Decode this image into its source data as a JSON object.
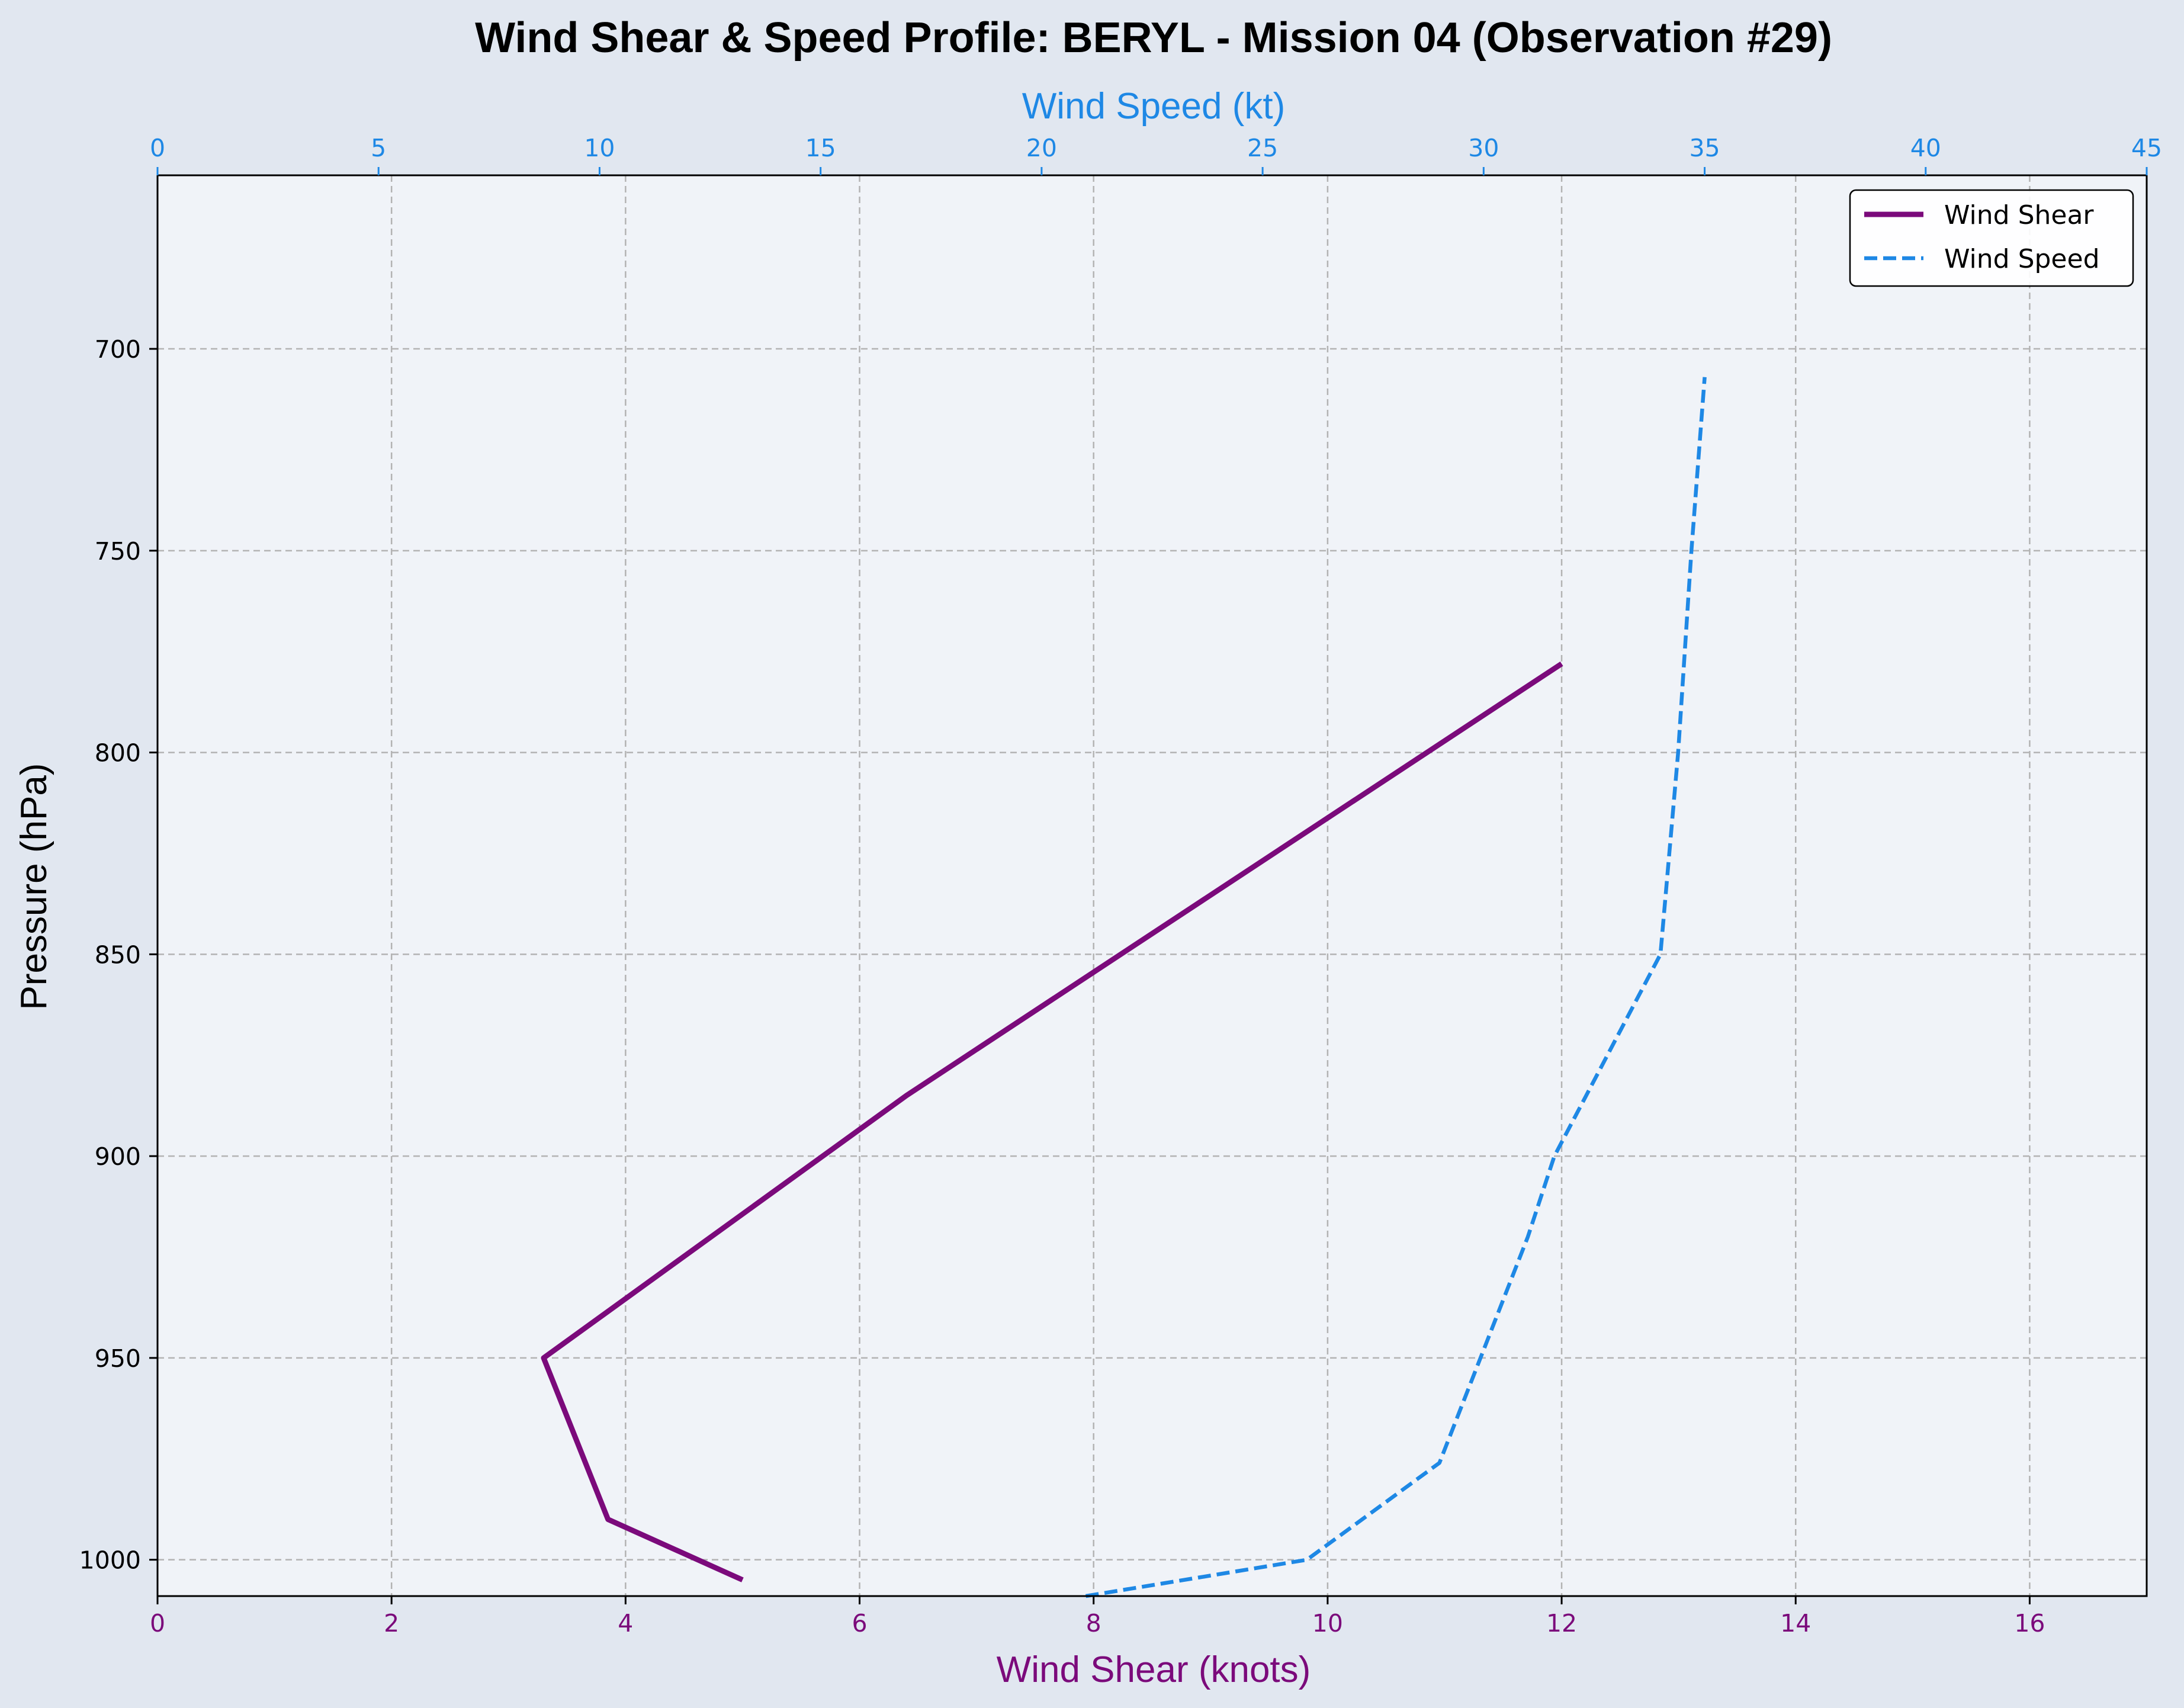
{
  "chart_data": {
    "type": "line",
    "title": "Wind Shear & Speed Profile: BERYL - Mission 04 (Observation #29)",
    "ylabel": "Pressure (hPa)",
    "xlabel_bottom": "Wind Shear (knots)",
    "xlabel_top": "Wind Speed (kt)",
    "ylim": [
      1009,
      657
    ],
    "y_ticks": [
      700,
      750,
      800,
      850,
      900,
      950,
      1000
    ],
    "x_bottom_lim": [
      0,
      17
    ],
    "x_bottom_ticks": [
      0,
      2,
      4,
      6,
      8,
      10,
      12,
      14,
      16
    ],
    "x_top_lim": [
      0,
      45
    ],
    "x_top_ticks": [
      0,
      5,
      10,
      15,
      20,
      25,
      30,
      35,
      40,
      45
    ],
    "grid": true,
    "legend_position": "top-right",
    "colors": {
      "shear": "#7b0a7b",
      "speed": "#1e88e5",
      "plot_bg": "#f0f3f8",
      "figure_bg": "#e1e7f0"
    },
    "series": [
      {
        "name": "Wind Shear",
        "axis": "bottom",
        "style": "solid",
        "points": [
          {
            "pressure": 1005,
            "value": 5.0
          },
          {
            "pressure": 990,
            "value": 3.85
          },
          {
            "pressure": 950,
            "value": 3.3
          },
          {
            "pressure": 885,
            "value": 6.4
          },
          {
            "pressure": 778,
            "value": 12.0
          }
        ]
      },
      {
        "name": "Wind Speed",
        "axis": "top",
        "style": "dashed",
        "points": [
          {
            "pressure": 1009,
            "value": 21.0
          },
          {
            "pressure": 1000,
            "value": 26.0
          },
          {
            "pressure": 976,
            "value": 29.0
          },
          {
            "pressure": 920,
            "value": 31.0
          },
          {
            "pressure": 900,
            "value": 31.6
          },
          {
            "pressure": 850,
            "value": 34.0
          },
          {
            "pressure": 800,
            "value": 34.4
          },
          {
            "pressure": 750,
            "value": 34.7
          },
          {
            "pressure": 707,
            "value": 35.0
          }
        ]
      }
    ]
  }
}
